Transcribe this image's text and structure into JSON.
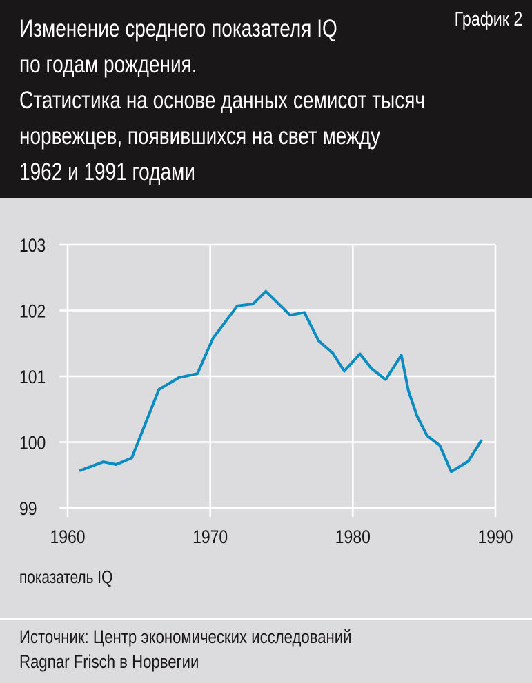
{
  "header": {
    "title_lines": [
      "Изменение среднего показателя IQ",
      "по годам рождения.",
      "Статистика на основе данных семисот тысяч",
      "норвежцев, появившихся на свет между",
      "1962 и 1991 годами"
    ],
    "chart_number": "График 2"
  },
  "footer": {
    "source_lines": [
      "Источник: Центр экономических исследований",
      "Ragnar Frisch в Норвегии"
    ]
  },
  "chart_data": {
    "type": "line",
    "title": "Изменение среднего показателя IQ по годам рождения",
    "xlabel": "",
    "ylabel": "показатель IQ",
    "xlim": [
      1960,
      1990
    ],
    "ylim": [
      99,
      103
    ],
    "x_ticks": [
      "1960",
      "1970",
      "1980",
      "1990"
    ],
    "y_ticks": [
      "99",
      "100",
      "101",
      "102",
      "103"
    ],
    "grid": true,
    "line_color": "#0a8cc0",
    "series": [
      {
        "name": "IQ",
        "x": [
          1960.9,
          1962.5,
          1963.4,
          1964.5,
          1966.4,
          1967.8,
          1969.1,
          1970.2,
          1971.9,
          1973.0,
          1973.9,
          1975.6,
          1976.6,
          1977.6,
          1978.6,
          1979.4,
          1980.5,
          1981.3,
          1982.3,
          1983.4,
          1983.9,
          1984.5,
          1985.2,
          1986.1,
          1986.9,
          1988.1,
          1989.0
        ],
        "y": [
          99.57,
          99.7,
          99.66,
          99.76,
          100.8,
          100.98,
          101.04,
          101.58,
          102.07,
          102.1,
          102.29,
          101.93,
          101.97,
          101.54,
          101.35,
          101.08,
          101.34,
          101.12,
          100.95,
          101.32,
          100.78,
          100.4,
          100.1,
          99.95,
          99.55,
          99.71,
          100.02
        ]
      }
    ]
  }
}
